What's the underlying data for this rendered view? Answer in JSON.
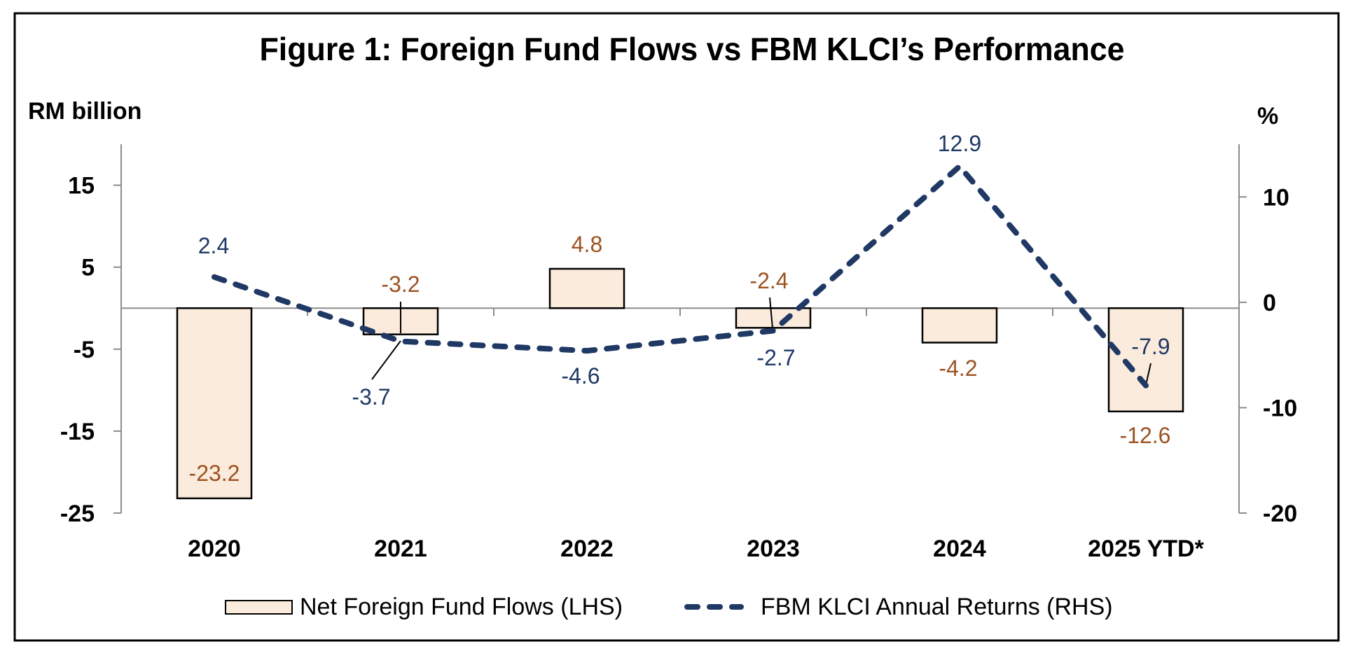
{
  "chart_data": {
    "type": "bar",
    "title": "Figure 1: Foreign Fund Flows vs FBM KLCI’s Performance",
    "xlabel": "",
    "ylabel": "RM billion",
    "ylabel_right": "%",
    "categories": [
      "2020",
      "2021",
      "2022",
      "2023",
      "2024",
      "2025 YTD*"
    ],
    "ylim": [
      -25,
      20
    ],
    "ylim_right": [
      -20,
      15
    ],
    "yticks": [
      15,
      5,
      -5,
      -15,
      -25
    ],
    "yticks_right": [
      10,
      0,
      -10,
      -20
    ],
    "grid": false,
    "legend_position": "bottom",
    "series": [
      {
        "name": "Net Foreign Fund Flows (LHS)",
        "type": "bar",
        "axis": "left",
        "values": [
          -23.2,
          -3.2,
          4.8,
          -2.4,
          -4.2,
          -12.6
        ],
        "labels": [
          "-23.2",
          "-3.2",
          "4.8",
          "-2.4",
          "-4.2",
          "-12.6"
        ],
        "color": "#FBEBDC",
        "label_color": "#9C5221"
      },
      {
        "name": "FBM KLCI Annual Returns (RHS)",
        "type": "line",
        "style": "dashed",
        "axis": "right",
        "values": [
          2.4,
          -3.7,
          -4.6,
          -2.7,
          12.9,
          -7.9
        ],
        "labels": [
          "2.4",
          "-3.7",
          "-4.6",
          "-2.7",
          "12.9",
          "-7.9"
        ],
        "color": "#1F3864",
        "label_color": "#1F3864"
      }
    ]
  }
}
